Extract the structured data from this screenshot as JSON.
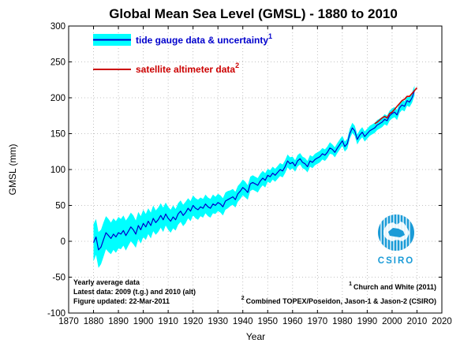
{
  "chart_data": {
    "type": "line",
    "title": "Global Mean Sea Level (GMSL) - 1880 to 2010",
    "xlabel": "Year",
    "ylabel": "GMSL (mm)",
    "xlim": [
      1870,
      2020
    ],
    "ylim": [
      -100,
      300
    ],
    "xticks": [
      1870,
      1880,
      1890,
      1900,
      1910,
      1920,
      1930,
      1940,
      1950,
      1960,
      1970,
      1980,
      1990,
      2000,
      2010,
      2020
    ],
    "yticks": [
      -100,
      -50,
      0,
      50,
      100,
      150,
      200,
      250,
      300
    ],
    "grid": true,
    "series": [
      {
        "name": "tide gauge data & uncertainty",
        "superscript": "1",
        "color": "#0000cc",
        "band_color": "#00ffff",
        "x": [
          1880,
          1881,
          1882,
          1883,
          1884,
          1885,
          1886,
          1887,
          1888,
          1889,
          1890,
          1891,
          1892,
          1893,
          1894,
          1895,
          1896,
          1897,
          1898,
          1899,
          1900,
          1901,
          1902,
          1903,
          1904,
          1905,
          1906,
          1907,
          1908,
          1909,
          1910,
          1911,
          1912,
          1913,
          1914,
          1915,
          1916,
          1917,
          1918,
          1919,
          1920,
          1921,
          1922,
          1923,
          1924,
          1925,
          1926,
          1927,
          1928,
          1929,
          1930,
          1931,
          1932,
          1933,
          1934,
          1935,
          1936,
          1937,
          1938,
          1939,
          1940,
          1941,
          1942,
          1943,
          1944,
          1945,
          1946,
          1947,
          1948,
          1949,
          1950,
          1951,
          1952,
          1953,
          1954,
          1955,
          1956,
          1957,
          1958,
          1959,
          1960,
          1961,
          1962,
          1963,
          1964,
          1965,
          1966,
          1967,
          1968,
          1969,
          1970,
          1971,
          1972,
          1973,
          1974,
          1975,
          1976,
          1977,
          1978,
          1979,
          1980,
          1981,
          1982,
          1983,
          1984,
          1985,
          1986,
          1987,
          1988,
          1989,
          1990,
          1991,
          1992,
          1993,
          1994,
          1995,
          1996,
          1997,
          1998,
          1999,
          2000,
          2001,
          2002,
          2003,
          2004,
          2005,
          2006,
          2007,
          2008,
          2009
        ],
        "values": [
          -2,
          6,
          -12,
          -8,
          2,
          12,
          8,
          4,
          10,
          6,
          12,
          10,
          15,
          8,
          14,
          20,
          16,
          10,
          22,
          16,
          25,
          20,
          28,
          22,
          32,
          26,
          30,
          36,
          30,
          38,
          32,
          28,
          34,
          30,
          38,
          42,
          36,
          40,
          46,
          42,
          50,
          46,
          44,
          48,
          46,
          52,
          48,
          46,
          52,
          50,
          54,
          52,
          48,
          56,
          58,
          60,
          62,
          58,
          66,
          70,
          75,
          72,
          68,
          80,
          82,
          80,
          78,
          84,
          88,
          85,
          92,
          90,
          95,
          92,
          96,
          100,
          98,
          104,
          112,
          108,
          110,
          105,
          112,
          115,
          110,
          108,
          104,
          112,
          110,
          114,
          116,
          118,
          122,
          120,
          124,
          130,
          128,
          124,
          130,
          135,
          140,
          132,
          136,
          150,
          158,
          154,
          142,
          148,
          152,
          146,
          150,
          154,
          156,
          158,
          162,
          164,
          166,
          170,
          168,
          175,
          178,
          180,
          176,
          186,
          190,
          188,
          196,
          194,
          200,
          210
        ],
        "uncertainty": [
          26,
          25,
          25,
          24,
          24,
          23,
          23,
          22,
          22,
          22,
          22,
          21,
          21,
          21,
          20,
          20,
          20,
          19,
          19,
          19,
          19,
          18,
          18,
          18,
          18,
          17,
          17,
          17,
          17,
          16,
          16,
          16,
          16,
          15,
          15,
          15,
          15,
          15,
          14,
          14,
          14,
          14,
          14,
          13,
          13,
          13,
          13,
          13,
          13,
          12,
          12,
          12,
          12,
          12,
          12,
          11,
          11,
          11,
          11,
          11,
          11,
          11,
          10,
          10,
          10,
          10,
          10,
          10,
          10,
          10,
          9,
          9,
          9,
          9,
          9,
          9,
          9,
          9,
          9,
          9,
          8,
          8,
          8,
          8,
          8,
          8,
          8,
          8,
          8,
          8,
          8,
          8,
          8,
          8,
          8,
          8,
          7,
          7,
          7,
          7,
          7,
          7,
          7,
          7,
          7,
          7,
          7,
          7,
          7,
          7,
          7,
          7,
          7,
          7,
          7,
          7,
          7,
          7,
          7,
          7,
          7,
          7,
          7,
          7,
          7,
          7,
          7,
          7,
          7,
          7
        ]
      },
      {
        "name": "satellite altimeter data",
        "superscript": "2",
        "color": "#cc0000",
        "x": [
          1993,
          1994,
          1995,
          1996,
          1997,
          1998,
          1999,
          2000,
          2001,
          2002,
          2003,
          2004,
          2005,
          2006,
          2007,
          2008,
          2009,
          2010
        ],
        "values": [
          164,
          166,
          169,
          172,
          174,
          172,
          178,
          180,
          184,
          188,
          192,
          196,
          198,
          202,
          202,
          206,
          210,
          214
        ]
      }
    ],
    "annotations": [
      "Yearly average data",
      "Latest data: 2009 (t.g.) and 2010 (alt)",
      "Figure updated: 22-Mar-2011",
      "Church and White (2011)",
      "Combined TOPEX/Poseidon, Jason-1 & Jason-2 (CSIRO)"
    ],
    "logo_text": "CSIRO"
  },
  "colors": {
    "tide_line": "#0000cc",
    "tide_band": "#00ffff",
    "satellite_line": "#cc0000",
    "logo_blue": "#1a9bd7"
  },
  "notes": {
    "line1": "Yearly average data",
    "line2": "Latest data: 2009 (t.g.) and 2010 (alt)",
    "line3": "Figure updated: 22-Mar-2011",
    "ref1_sup": "1",
    "ref1": "Church and White (2011)",
    "ref2_sup": "2",
    "ref2": "Combined TOPEX/Poseidon, Jason-1 & Jason-2 (CSIRO)"
  },
  "logo": {
    "text": "CSIRO",
    "icon": "csiro-logo-icon"
  }
}
